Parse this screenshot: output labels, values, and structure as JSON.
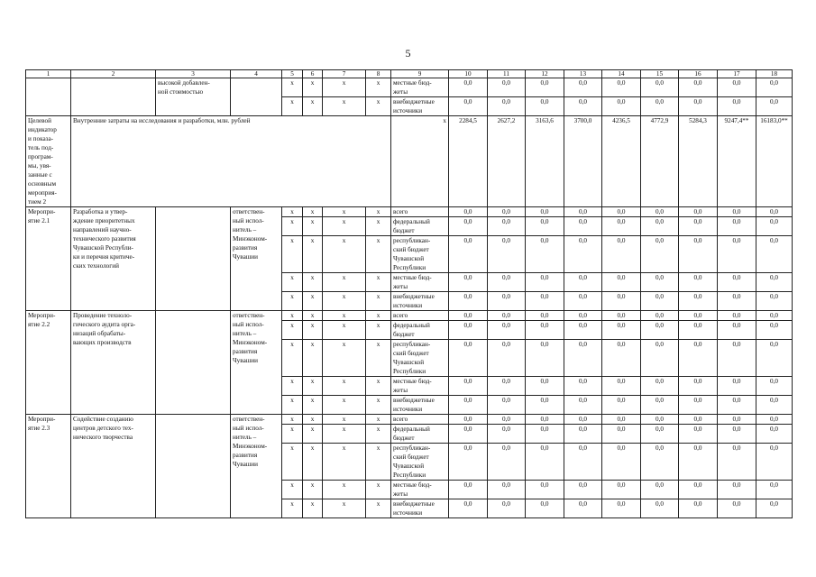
{
  "page_number": "5",
  "headers": [
    "1",
    "2",
    "3",
    "4",
    "5",
    "6",
    "7",
    "8",
    "9",
    "10",
    "11",
    "12",
    "13",
    "14",
    "15",
    "16",
    "17",
    "18"
  ],
  "continuation": {
    "col3": "высокой добавлен-\nной стоимостью",
    "rows": [
      {
        "marks": [
          "x",
          "x",
          "x",
          "x"
        ],
        "source": "местные бюд-\nжеты",
        "values": [
          "0,0",
          "0,0",
          "0,0",
          "0,0",
          "0,0",
          "0,0",
          "0,0",
          "0,0",
          "0,0"
        ]
      },
      {
        "marks": [
          "x",
          "x",
          "x",
          "x"
        ],
        "source": "внебюджетные\nисточники",
        "values": [
          "0,0",
          "0,0",
          "0,0",
          "0,0",
          "0,0",
          "0,0",
          "0,0",
          "0,0",
          "0,0"
        ]
      }
    ]
  },
  "indicator": {
    "label": "Целевой\nиндикатор\nи показа-\nтель под-\nпрограм-\nмы, увя-\nзанные с\nосновным\nмероприя-\nтием 2",
    "text": "Внутренние затраты на исследования и разработки, млн. рублей",
    "col9": "x",
    "values": [
      "2284,5",
      "2627,2",
      "3163,6",
      "3700,0",
      "4236,5",
      "4772,9",
      "5284,3",
      "9247,4**",
      "16183,0**"
    ]
  },
  "measures": [
    {
      "label": "Меропри-\nятие 2.1",
      "name": "Разработка и утвер-\nждение приоритетных\nнаправлений научно-\nтехнического развития\nЧувашской Республи-\nки и перечня критиче-\nских технологий",
      "executor": "ответствен-\nный испол-\nнитель –\nМинэконом-\nразвития\nЧувашии",
      "rows": [
        {
          "marks": [
            "x",
            "x",
            "x",
            "x"
          ],
          "source": "всего",
          "values": [
            "0,0",
            "0,0",
            "0,0",
            "0,0",
            "0,0",
            "0,0",
            "0,0",
            "0,0",
            "0,0"
          ]
        },
        {
          "marks": [
            "x",
            "x",
            "x",
            "x"
          ],
          "source": "федеральный\nбюджет",
          "values": [
            "0,0",
            "0,0",
            "0,0",
            "0,0",
            "0,0",
            "0,0",
            "0,0",
            "0,0",
            "0,0"
          ]
        },
        {
          "marks": [
            "x",
            "x",
            "x",
            "x"
          ],
          "source": "республикан-\nский бюджет\nЧувашской\nРеспублики",
          "values": [
            "0,0",
            "0,0",
            "0,0",
            "0,0",
            "0,0",
            "0,0",
            "0,0",
            "0,0",
            "0,0"
          ]
        },
        {
          "marks": [
            "x",
            "x",
            "x",
            "x"
          ],
          "source": "местные бюд-\nжеты",
          "values": [
            "0,0",
            "0,0",
            "0,0",
            "0,0",
            "0,0",
            "0,0",
            "0,0",
            "0,0",
            "0,0"
          ]
        },
        {
          "marks": [
            "x",
            "x",
            "x",
            "x"
          ],
          "source": "внебюджетные\nисточники",
          "values": [
            "0,0",
            "0,0",
            "0,0",
            "0,0",
            "0,0",
            "0,0",
            "0,0",
            "0,0",
            "0,0"
          ]
        }
      ]
    },
    {
      "label": "Меропри-\nятие 2.2",
      "name": "Проведение техноло-\nгического аудита орга-\nнизаций обрабаты-\nвающих производств",
      "executor": "ответствен-\nный испол-\nнитель –\nМинэконом-\nразвития\nЧувашии",
      "rows": [
        {
          "marks": [
            "x",
            "x",
            "x",
            "x"
          ],
          "source": "всего",
          "values": [
            "0,0",
            "0,0",
            "0,0",
            "0,0",
            "0,0",
            "0,0",
            "0,0",
            "0,0",
            "0,0"
          ]
        },
        {
          "marks": [
            "x",
            "x",
            "x",
            "x"
          ],
          "source": "федеральный\nбюджет",
          "values": [
            "0,0",
            "0,0",
            "0,0",
            "0,0",
            "0,0",
            "0,0",
            "0,0",
            "0,0",
            "0,0"
          ]
        },
        {
          "marks": [
            "x",
            "x",
            "x",
            "x"
          ],
          "source": "республикан-\nский бюджет\nЧувашской\nРеспублики",
          "values": [
            "0,0",
            "0,0",
            "0,0",
            "0,0",
            "0,0",
            "0,0",
            "0,0",
            "0,0",
            "0,0"
          ]
        },
        {
          "marks": [
            "x",
            "x",
            "x",
            "x"
          ],
          "source": "местные бюд-\nжеты",
          "values": [
            "0,0",
            "0,0",
            "0,0",
            "0,0",
            "0,0",
            "0,0",
            "0,0",
            "0,0",
            "0,0"
          ]
        },
        {
          "marks": [
            "x",
            "x",
            "x",
            "x"
          ],
          "source": "внебюджетные\nисточники",
          "values": [
            "0,0",
            "0,0",
            "0,0",
            "0,0",
            "0,0",
            "0,0",
            "0,0",
            "0,0",
            "0,0"
          ]
        }
      ]
    },
    {
      "label": "Меропри-\nятие 2.3",
      "name": "Содействие созданию\nцентров детского тех-\nнического творчества",
      "executor": "ответствен-\nный испол-\nнитель –\nМинэконом-\nразвития\nЧувашии",
      "rows": [
        {
          "marks": [
            "x",
            "x",
            "x",
            "x"
          ],
          "source": "всего",
          "values": [
            "0,0",
            "0,0",
            "0,0",
            "0,0",
            "0,0",
            "0,0",
            "0,0",
            "0,0",
            "0,0"
          ]
        },
        {
          "marks": [
            "x",
            "x",
            "x",
            "x"
          ],
          "source": "федеральный\nбюджет",
          "values": [
            "0,0",
            "0,0",
            "0,0",
            "0,0",
            "0,0",
            "0,0",
            "0,0",
            "0,0",
            "0,0"
          ]
        },
        {
          "marks": [
            "x",
            "x",
            "x",
            "x"
          ],
          "source": "республикан-\nский бюджет\nЧувашской\nРеспублики",
          "values": [
            "0,0",
            "0,0",
            "0,0",
            "0,0",
            "0,0",
            "0,0",
            "0,0",
            "0,0",
            "0,0"
          ]
        },
        {
          "marks": [
            "x",
            "x",
            "x",
            "x"
          ],
          "source": "местные бюд-\nжеты",
          "values": [
            "0,0",
            "0,0",
            "0,0",
            "0,0",
            "0,0",
            "0,0",
            "0,0",
            "0,0",
            "0,0"
          ]
        },
        {
          "marks": [
            "x",
            "x",
            "x",
            "x"
          ],
          "source": "внебюджетные\nисточники",
          "values": [
            "0,0",
            "0,0",
            "0,0",
            "0,0",
            "0,0",
            "0,0",
            "0,0",
            "0,0",
            "0,0"
          ]
        }
      ]
    }
  ]
}
